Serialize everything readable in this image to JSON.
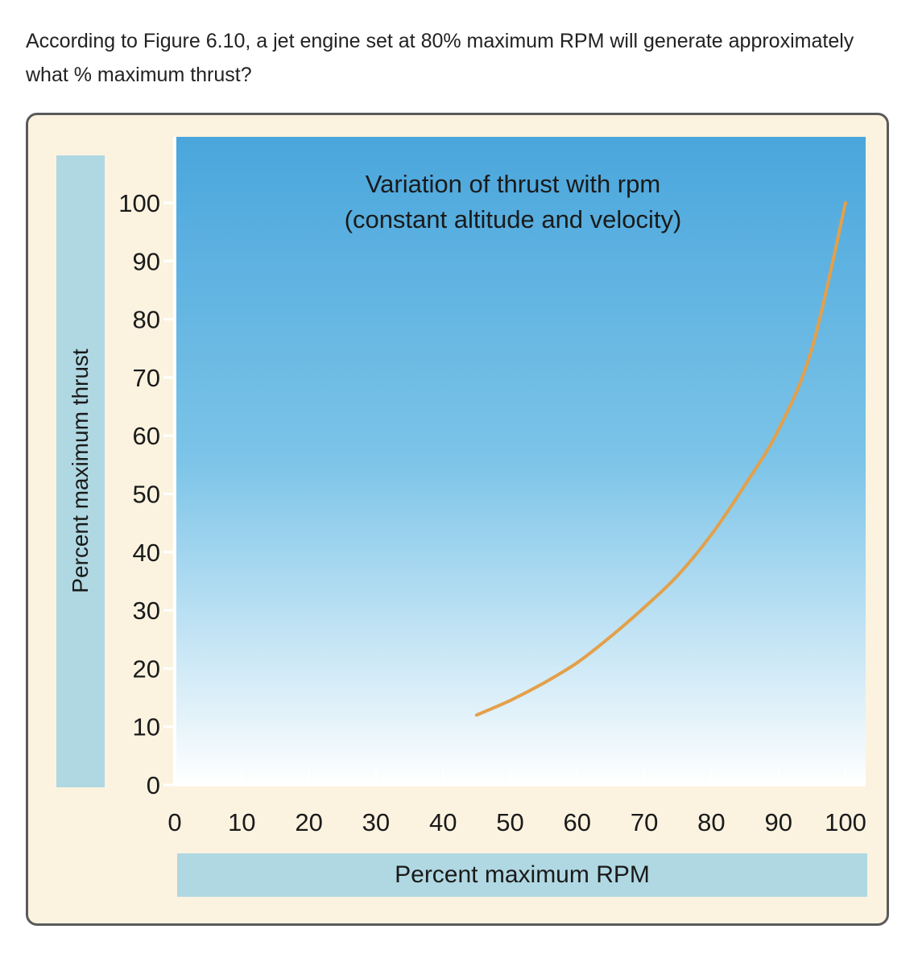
{
  "question": {
    "text": "According to Figure 6.10, a jet engine set at 80% maximum RPM will generate approximately what % maximum thrust?"
  },
  "chart_data": {
    "type": "line",
    "title": "Variation of thrust with rpm",
    "subtitle": "(constant altitude and velocity)",
    "xlabel": "Percent maximum RPM",
    "ylabel": "Percent maximum thrust",
    "xlim": [
      0,
      100
    ],
    "ylim": [
      0,
      100
    ],
    "xticks": [
      0,
      10,
      20,
      30,
      40,
      50,
      60,
      70,
      80,
      90,
      100
    ],
    "yticks": [
      0,
      10,
      20,
      30,
      40,
      50,
      60,
      70,
      80,
      90,
      100
    ],
    "grid": false,
    "series": [
      {
        "color": "#e3a04a",
        "x": [
          45,
          50,
          55,
          60,
          65,
          70,
          75,
          80,
          85,
          90,
          95,
          100
        ],
        "y": [
          12,
          14.5,
          17.5,
          21,
          25.5,
          30.5,
          36,
          43,
          51.5,
          61,
          75,
          100
        ]
      }
    ],
    "colors": {
      "plot_top": "#4aa6dc",
      "plot_mid": "#7cc4e8",
      "plot_bottom": "#ffffff",
      "frame_bg": "#fbf3e0",
      "label_box": "#b0d8e2"
    }
  }
}
